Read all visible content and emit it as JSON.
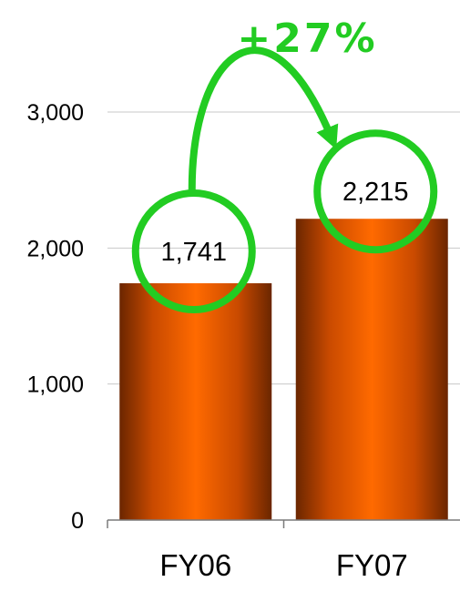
{
  "chart_data": {
    "type": "bar",
    "categories": [
      "FY06",
      "FY07"
    ],
    "values": [
      1741,
      2215
    ],
    "value_labels": [
      "1,741",
      "2,215"
    ],
    "title": "",
    "xlabel": "",
    "ylabel": "",
    "ylim": [
      0,
      3000
    ],
    "yticks": [
      0,
      1000,
      2000,
      3000
    ],
    "ytick_labels": [
      "0",
      "1,000",
      "2,000",
      "3,000"
    ],
    "grid": true,
    "legend": "none",
    "bar_color": "#ff6a00",
    "bar_edge_color": "#6b2600",
    "annotation": {
      "text": "+27%",
      "color": "#22cc22",
      "from": "FY06",
      "to": "FY07"
    }
  }
}
